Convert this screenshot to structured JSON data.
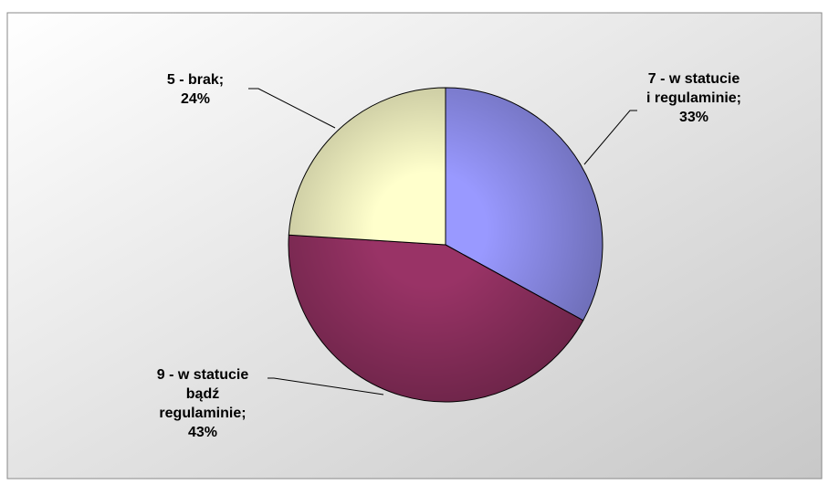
{
  "chart_data": {
    "type": "pie",
    "categories": [
      "7 - w statucie i regulaminie;",
      "9 - w statucie bądź regulaminie;",
      "5 - brak;"
    ],
    "values": [
      33,
      43,
      24
    ],
    "value_labels": [
      "33%",
      "43%",
      "24%"
    ],
    "colors": [
      "#9999ff",
      "#993366",
      "#ffffcc"
    ]
  }
}
